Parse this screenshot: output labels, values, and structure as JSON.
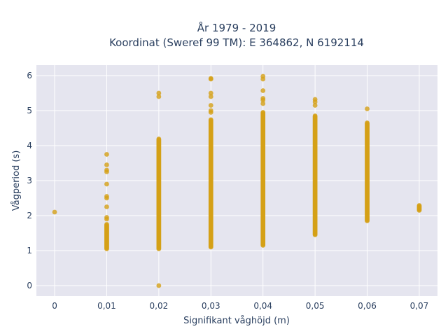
{
  "chart_data": {
    "type": "scatter",
    "title": "År 1979 - 2019",
    "subtitle": "Koordinat (Sweref 99 TM): E 364862, N 6192114",
    "xlabel": "Signifikant våghöjd (m)",
    "ylabel": "Vågperiod (s)",
    "xlim": [
      -0.0035,
      0.0735
    ],
    "ylim": [
      -0.3,
      6.3
    ],
    "x_ticks": [
      "0",
      "0,01",
      "0,02",
      "0,03",
      "0,04",
      "0,05",
      "0,06",
      "0,07"
    ],
    "y_ticks": [
      "0",
      "1",
      "2",
      "3",
      "4",
      "5",
      "6"
    ],
    "grid": true,
    "legend": "none",
    "marker_color": "#d4a017",
    "background": "#e5e5ef",
    "series": [
      {
        "columns": [
          {
            "x": 0.0,
            "y_points": [
              2.1
            ]
          },
          {
            "x": 0.01,
            "y_range": [
              1.05,
              1.75
            ],
            "y_points": [
              1.9,
              1.95,
              2.25,
              2.5,
              2.55,
              2.9,
              3.25,
              3.3,
              3.45,
              3.75
            ]
          },
          {
            "x": 0.02,
            "y_range": [
              1.05,
              4.2
            ],
            "y_points": [
              0.0,
              5.4,
              5.5
            ]
          },
          {
            "x": 0.03,
            "y_range": [
              1.1,
              4.75
            ],
            "y_points": [
              4.95,
              5.0,
              5.15,
              5.4,
              5.5,
              5.9,
              5.92
            ]
          },
          {
            "x": 0.04,
            "y_range": [
              1.15,
              4.95
            ],
            "y_points": [
              5.2,
              5.3,
              5.35,
              5.57,
              5.9,
              5.98
            ]
          },
          {
            "x": 0.05,
            "y_range": [
              1.45,
              4.85
            ],
            "y_points": [
              5.15,
              5.25,
              5.32
            ]
          },
          {
            "x": 0.06,
            "y_range": [
              1.85,
              4.65
            ],
            "y_points": [
              5.05
            ]
          },
          {
            "x": 0.07,
            "y_range": [
              2.15,
              2.3
            ],
            "y_points": []
          }
        ]
      }
    ]
  }
}
